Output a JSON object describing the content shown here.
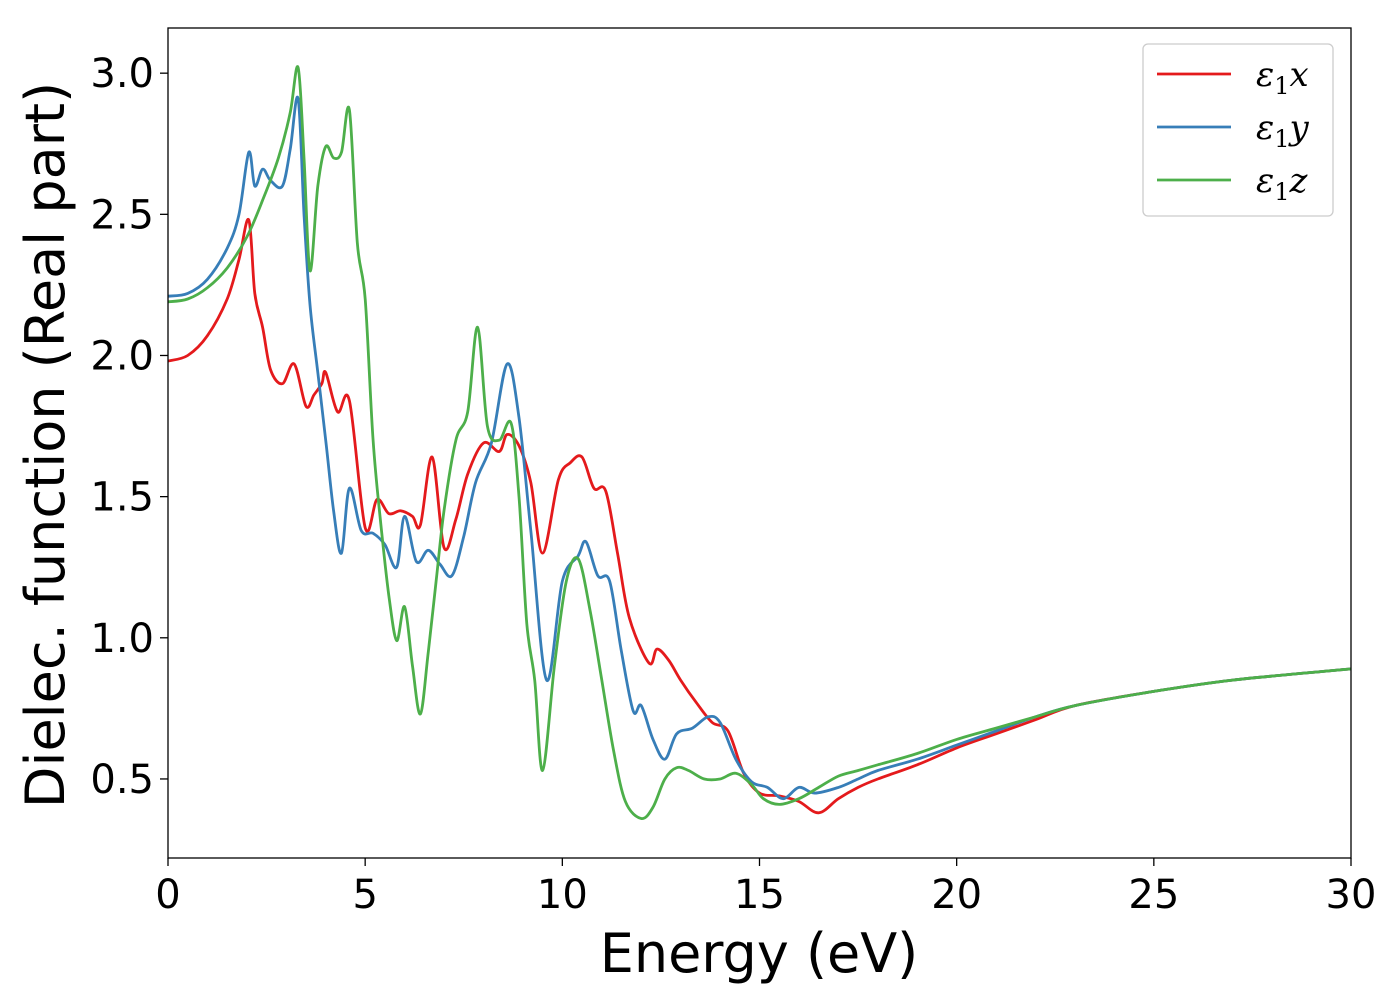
{
  "chart_data": {
    "type": "line",
    "title": "",
    "xlabel": "Energy (eV)",
    "ylabel": "Dielec. function (Real part)",
    "xlim": [
      0,
      30
    ],
    "ylim": [
      0.22,
      3.16
    ],
    "xticks": [
      0,
      5,
      10,
      15,
      20,
      25,
      30
    ],
    "xtick_labels": [
      "0",
      "5",
      "10",
      "15",
      "20",
      "25",
      "30"
    ],
    "yticks": [
      0.5,
      1.0,
      1.5,
      2.0,
      2.5,
      3.0
    ],
    "ytick_labels": [
      "0.5",
      "1.0",
      "1.5",
      "2.0",
      "2.5",
      "3.0"
    ],
    "grid": false,
    "legend_position": "top-right",
    "series": [
      {
        "name": "ε₁x",
        "legend_base": "ε",
        "legend_sub": "1",
        "legend_var": "x",
        "color": "#e41a1c",
        "x": [
          0,
          0.5,
          1.0,
          1.5,
          1.8,
          2.05,
          2.2,
          2.4,
          2.6,
          2.9,
          3.2,
          3.5,
          3.7,
          3.9,
          4.0,
          4.3,
          4.6,
          5.0,
          5.3,
          5.6,
          5.9,
          6.2,
          6.4,
          6.7,
          7.0,
          7.3,
          7.6,
          8.0,
          8.4,
          8.6,
          8.9,
          9.2,
          9.5,
          9.9,
          10.2,
          10.5,
          10.8,
          11.1,
          11.4,
          11.7,
          12.2,
          12.4,
          12.7,
          13.0,
          13.4,
          13.8,
          14.2,
          14.6,
          15.0,
          15.5,
          16.0,
          16.5,
          17.0,
          17.5,
          18.0,
          19.0,
          20.0,
          21.0,
          22.0,
          23.0,
          25.0,
          27.0,
          30.0
        ],
        "y": [
          1.98,
          2.0,
          2.07,
          2.2,
          2.34,
          2.48,
          2.22,
          2.1,
          1.95,
          1.9,
          1.97,
          1.82,
          1.86,
          1.9,
          1.94,
          1.8,
          1.84,
          1.39,
          1.49,
          1.44,
          1.45,
          1.43,
          1.4,
          1.64,
          1.32,
          1.42,
          1.58,
          1.69,
          1.66,
          1.72,
          1.68,
          1.55,
          1.3,
          1.56,
          1.62,
          1.64,
          1.53,
          1.52,
          1.3,
          1.07,
          0.91,
          0.96,
          0.92,
          0.85,
          0.77,
          0.7,
          0.67,
          0.52,
          0.45,
          0.44,
          0.42,
          0.38,
          0.43,
          0.47,
          0.5,
          0.55,
          0.61,
          0.66,
          0.71,
          0.76,
          0.81,
          0.85,
          0.89
        ]
      },
      {
        "name": "ε₁y",
        "legend_base": "ε",
        "legend_sub": "1",
        "legend_var": "y",
        "color": "#377eb8",
        "x": [
          0,
          0.5,
          1.0,
          1.5,
          1.8,
          2.05,
          2.2,
          2.4,
          2.6,
          2.9,
          3.1,
          3.3,
          3.45,
          3.6,
          3.8,
          4.0,
          4.2,
          4.4,
          4.6,
          4.9,
          5.2,
          5.5,
          5.8,
          6.0,
          6.3,
          6.6,
          6.9,
          7.2,
          7.5,
          7.8,
          8.2,
          8.6,
          8.9,
          9.2,
          9.6,
          10.0,
          10.4,
          10.6,
          10.9,
          11.2,
          11.5,
          11.8,
          12.0,
          12.3,
          12.6,
          12.9,
          13.3,
          13.7,
          14.0,
          14.4,
          14.8,
          15.2,
          15.6,
          16.0,
          16.4,
          17.0,
          17.5,
          18.0,
          19.0,
          20.0,
          21.0,
          22.0,
          23.0,
          25.0,
          27.0,
          30.0
        ],
        "y": [
          2.21,
          2.22,
          2.27,
          2.38,
          2.5,
          2.72,
          2.6,
          2.66,
          2.62,
          2.6,
          2.73,
          2.91,
          2.5,
          2.18,
          1.94,
          1.7,
          1.45,
          1.3,
          1.53,
          1.38,
          1.37,
          1.33,
          1.25,
          1.43,
          1.27,
          1.31,
          1.26,
          1.22,
          1.36,
          1.55,
          1.69,
          1.97,
          1.78,
          1.38,
          0.85,
          1.2,
          1.29,
          1.34,
          1.22,
          1.2,
          0.95,
          0.74,
          0.76,
          0.64,
          0.57,
          0.66,
          0.68,
          0.72,
          0.7,
          0.57,
          0.49,
          0.47,
          0.43,
          0.47,
          0.45,
          0.47,
          0.5,
          0.53,
          0.57,
          0.62,
          0.67,
          0.72,
          0.76,
          0.81,
          0.85,
          0.89
        ]
      },
      {
        "name": "ε₁z",
        "legend_base": "ε",
        "legend_sub": "1",
        "legend_var": "z",
        "color": "#4daf4a",
        "x": [
          0,
          0.5,
          1.0,
          1.5,
          2.0,
          2.4,
          2.8,
          3.1,
          3.3,
          3.45,
          3.6,
          3.8,
          4.0,
          4.2,
          4.4,
          4.6,
          4.8,
          5.0,
          5.2,
          5.4,
          5.6,
          5.8,
          6.0,
          6.2,
          6.4,
          6.6,
          6.8,
          7.0,
          7.3,
          7.6,
          7.85,
          8.1,
          8.4,
          8.7,
          8.9,
          9.1,
          9.3,
          9.5,
          9.8,
          10.1,
          10.4,
          10.7,
          11.0,
          11.3,
          11.6,
          12.0,
          12.3,
          12.6,
          12.9,
          13.2,
          13.6,
          14.0,
          14.4,
          14.8,
          15.1,
          15.5,
          16.0,
          16.5,
          17.0,
          17.5,
          18.0,
          19.0,
          20.0,
          21.0,
          22.0,
          23.0,
          25.0,
          27.0,
          30.0
        ],
        "y": [
          2.19,
          2.2,
          2.24,
          2.31,
          2.42,
          2.55,
          2.7,
          2.86,
          3.02,
          2.7,
          2.3,
          2.6,
          2.74,
          2.7,
          2.72,
          2.87,
          2.4,
          2.2,
          1.7,
          1.4,
          1.15,
          0.99,
          1.11,
          0.9,
          0.73,
          0.95,
          1.2,
          1.45,
          1.7,
          1.8,
          2.1,
          1.75,
          1.7,
          1.76,
          1.5,
          1.05,
          0.85,
          0.53,
          0.9,
          1.2,
          1.28,
          1.1,
          0.85,
          0.6,
          0.42,
          0.36,
          0.4,
          0.5,
          0.54,
          0.53,
          0.5,
          0.5,
          0.52,
          0.48,
          0.43,
          0.41,
          0.43,
          0.47,
          0.51,
          0.53,
          0.55,
          0.59,
          0.64,
          0.68,
          0.72,
          0.76,
          0.81,
          0.85,
          0.89
        ]
      }
    ]
  }
}
